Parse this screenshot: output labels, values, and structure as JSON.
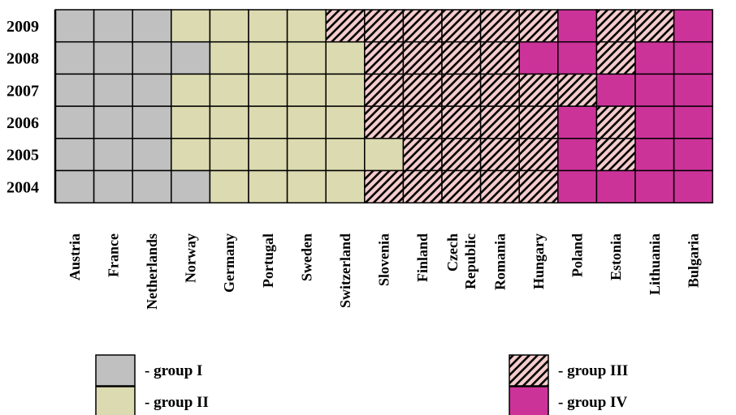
{
  "chart_data": {
    "type": "heatmap",
    "title": "",
    "xlabel": "",
    "ylabel": "",
    "x_categories": [
      "Austria",
      "France",
      "Netherlands",
      "Norway",
      "Germany",
      "Portugal",
      "Sweden",
      "Switzerland",
      "Slovenia",
      "Finland",
      "Czech Republic",
      "Romania",
      "Hungary",
      "Poland",
      "Estonia",
      "Lithuania",
      "Bulgaria"
    ],
    "x_label_lines": [
      [
        "Austria"
      ],
      [
        "France"
      ],
      [
        "Netherlands"
      ],
      [
        "Norway"
      ],
      [
        "Germany"
      ],
      [
        "Portugal"
      ],
      [
        "Sweden"
      ],
      [
        "Switzerland"
      ],
      [
        "Slovenia"
      ],
      [
        "Finland"
      ],
      [
        "Czech",
        "Republic"
      ],
      [
        "Romania"
      ],
      [
        "Hungary"
      ],
      [
        "Poland"
      ],
      [
        "Estonia"
      ],
      [
        "Lithuania"
      ],
      [
        "Bulgaria"
      ]
    ],
    "y_categories": [
      "2009",
      "2008",
      "2007",
      "2006",
      "2005",
      "2004"
    ],
    "values": [
      [
        1,
        1,
        1,
        2,
        2,
        2,
        2,
        3,
        3,
        3,
        3,
        3,
        3,
        4,
        3,
        3,
        4
      ],
      [
        1,
        1,
        1,
        1,
        2,
        2,
        2,
        2,
        3,
        3,
        3,
        3,
        4,
        4,
        3,
        4,
        4
      ],
      [
        1,
        1,
        1,
        2,
        2,
        2,
        2,
        2,
        3,
        3,
        3,
        3,
        3,
        3,
        4,
        4,
        4
      ],
      [
        1,
        1,
        1,
        2,
        2,
        2,
        2,
        2,
        3,
        3,
        3,
        3,
        3,
        4,
        3,
        4,
        4
      ],
      [
        1,
        1,
        1,
        2,
        2,
        2,
        2,
        2,
        2,
        3,
        3,
        3,
        3,
        4,
        3,
        4,
        4
      ],
      [
        1,
        1,
        1,
        1,
        2,
        2,
        2,
        2,
        3,
        3,
        3,
        3,
        3,
        4,
        4,
        4,
        4
      ]
    ],
    "legend": [
      {
        "group": 1,
        "label": "- group I",
        "color": "#c0c0c0",
        "pattern": "solid"
      },
      {
        "group": 2,
        "label": "- group II",
        "color": "#dcdab0",
        "pattern": "solid"
      },
      {
        "group": 3,
        "label": "- group III",
        "color": "#f5cccc",
        "pattern": "diagonal-hatch"
      },
      {
        "group": 4,
        "label": "- group IV",
        "color": "#cc3399",
        "pattern": "solid"
      }
    ],
    "legend_placement": "bottom",
    "grid": true
  }
}
